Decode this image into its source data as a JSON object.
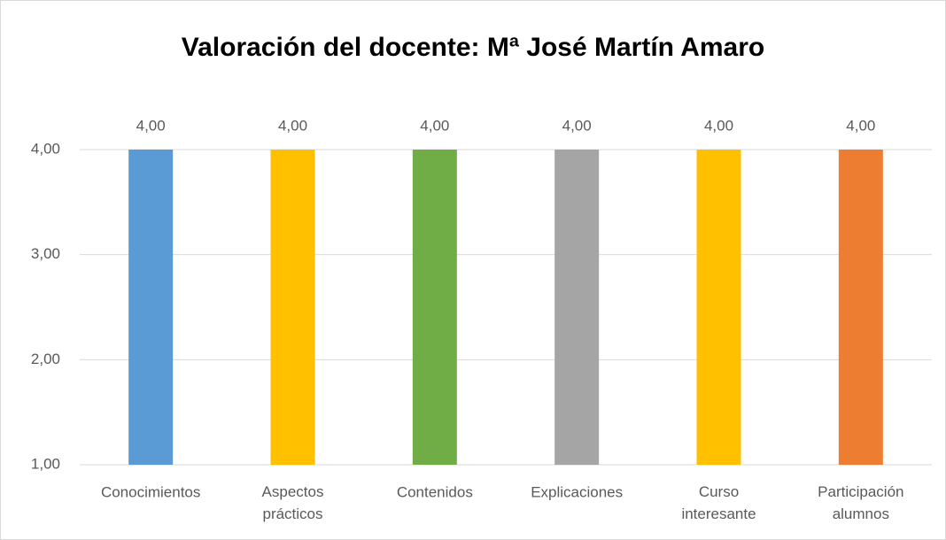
{
  "chart_data": {
    "type": "bar",
    "title": "Valoración del docente: Mª José Martín Amaro",
    "categories": [
      "Conocimientos",
      "Aspectos prácticos",
      "Contenidos",
      "Explicaciones",
      "Curso interesante",
      "Participación alumnos"
    ],
    "values": [
      4,
      4,
      4,
      4,
      4,
      4
    ],
    "value_labels": [
      "4,00",
      "4,00",
      "4,00",
      "4,00",
      "4,00",
      "4,00"
    ],
    "colors": [
      "#5b9bd5",
      "#ffc000",
      "#70ad47",
      "#a5a5a5",
      "#ffc000",
      "#ed7d31"
    ],
    "ylim": [
      1,
      4
    ],
    "yticks": [
      {
        "value": 1,
        "label": "1,00"
      },
      {
        "value": 2,
        "label": "2,00"
      },
      {
        "value": 3,
        "label": "3,00"
      },
      {
        "value": 4,
        "label": "4,00"
      }
    ],
    "grid": true
  }
}
